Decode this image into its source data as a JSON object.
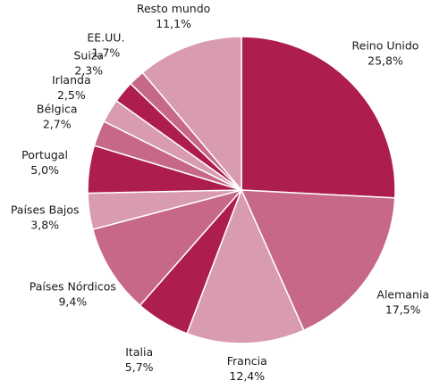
{
  "chart_data": {
    "type": "pie",
    "title": "",
    "unit": "%",
    "start_angle_deg": 0,
    "direction": "clockwise",
    "slice_border_color": "#ffffff",
    "slices": [
      {
        "label": "Reino Unido",
        "value": 25.8,
        "display": "25,8%",
        "color": "#ad1d4e"
      },
      {
        "label": "Alemania",
        "value": 17.5,
        "display": "17,5%",
        "color": "#c66886"
      },
      {
        "label": "Francia",
        "value": 12.4,
        "display": "12,4%",
        "color": "#d89cae"
      },
      {
        "label": "Italia",
        "value": 5.7,
        "display": "5,7%",
        "color": "#ad1d4e"
      },
      {
        "label": "Países Nórdicos",
        "value": 9.4,
        "display": "9,4%",
        "color": "#c66886"
      },
      {
        "label": "Países Bajos",
        "value": 3.8,
        "display": "3,8%",
        "color": "#d89cae"
      },
      {
        "label": "Portugal",
        "value": 5.0,
        "display": "5,0%",
        "color": "#ad1d4e"
      },
      {
        "label": "Bélgica",
        "value": 2.7,
        "display": "2,7%",
        "color": "#c66886"
      },
      {
        "label": "Irlanda",
        "value": 2.5,
        "display": "2,5%",
        "color": "#d89cae"
      },
      {
        "label": "Suiza",
        "value": 2.3,
        "display": "2,3%",
        "color": "#ad1d4e"
      },
      {
        "label": "EE.UU.",
        "value": 1.7,
        "display": "1,7%",
        "color": "#c66886"
      },
      {
        "label": "Resto mundo",
        "value": 11.1,
        "display": "11,1%",
        "color": "#d89cae"
      }
    ]
  }
}
